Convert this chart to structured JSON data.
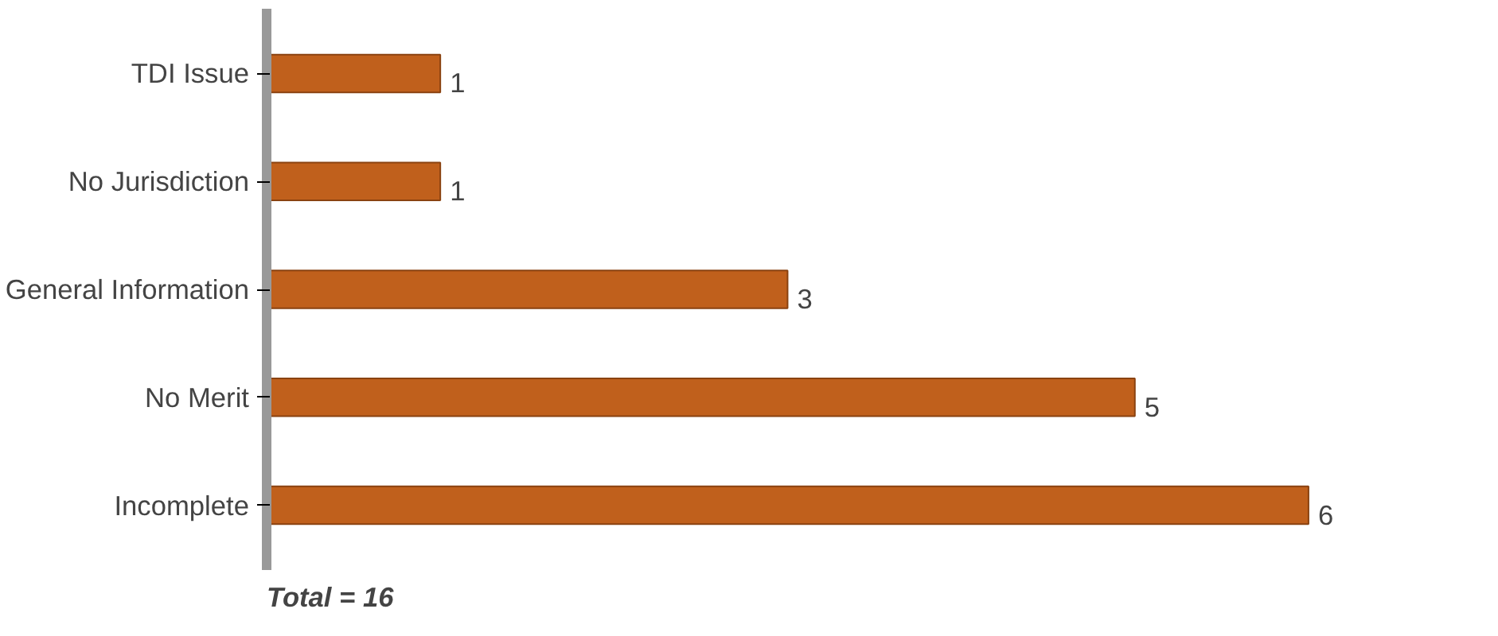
{
  "chart_data": {
    "type": "bar",
    "orientation": "horizontal",
    "categories": [
      "TDI Issue",
      "No Jurisdiction",
      "General Information",
      "No Merit",
      "Incomplete"
    ],
    "values": [
      1,
      1,
      3,
      5,
      6
    ],
    "color": "#c0601c",
    "data_labels": true,
    "tick_labels": "y",
    "grid": false,
    "annotations": [
      "Total =  16"
    ]
  }
}
